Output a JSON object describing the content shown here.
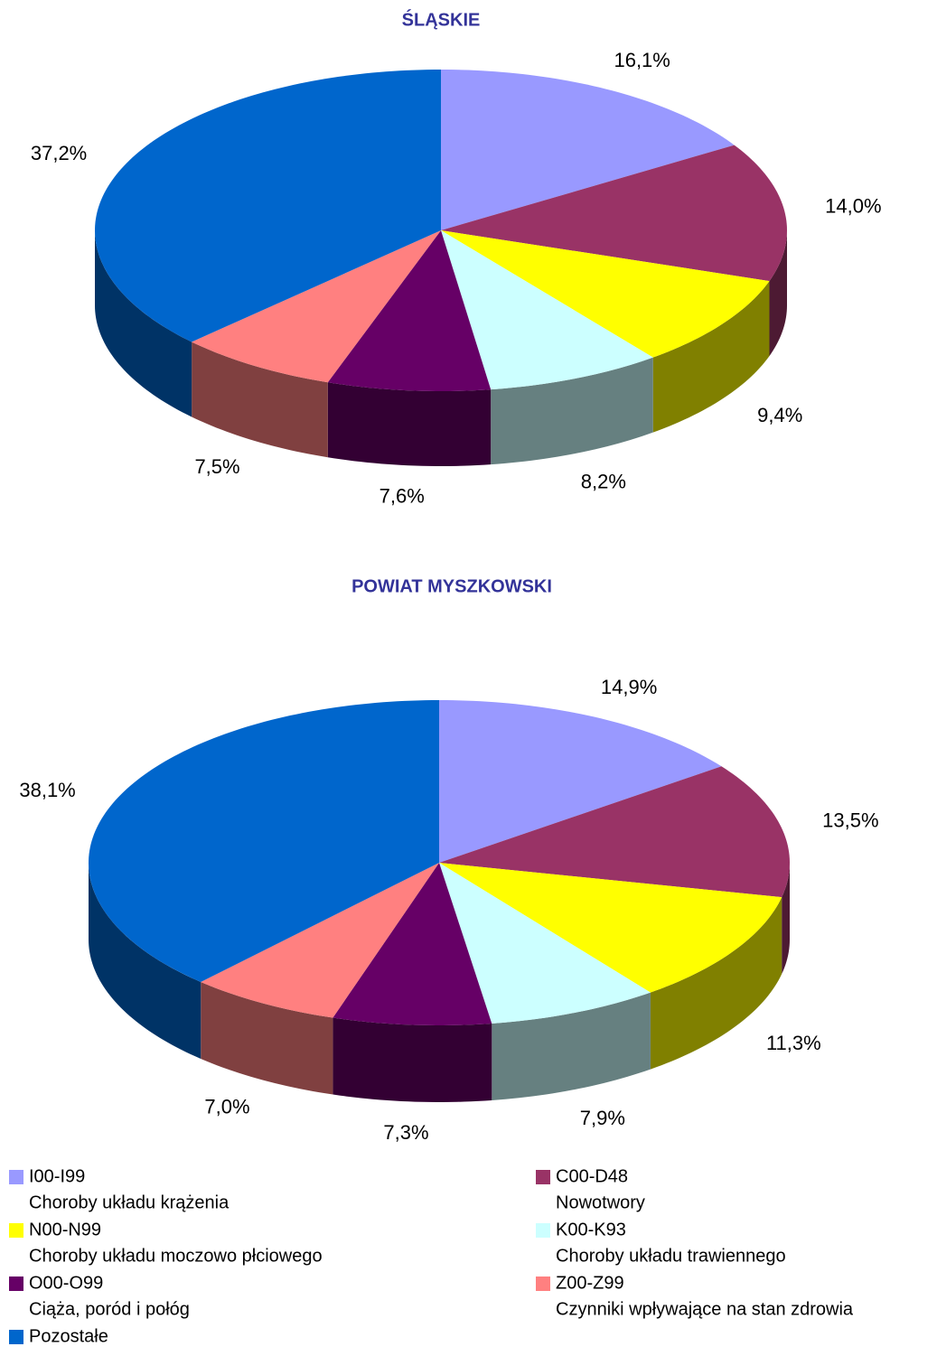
{
  "chart_data": [
    {
      "type": "pie",
      "title": "ŚLĄSKIE",
      "values": [
        16.1,
        14.0,
        9.4,
        8.2,
        7.6,
        7.5,
        37.2
      ],
      "value_labels": [
        "16,1%",
        "14,0%",
        "9,4%",
        "8,2%",
        "7,6%",
        "7,5%",
        "37,2%"
      ]
    },
    {
      "type": "pie",
      "title": "POWIAT MYSZKOWSKI",
      "values": [
        14.9,
        13.5,
        11.3,
        7.9,
        7.3,
        7.0,
        38.1
      ],
      "value_labels": [
        "14,9%",
        "13,5%",
        "11,3%",
        "7,9%",
        "7,3%",
        "7,0%",
        "38,1%"
      ]
    }
  ],
  "legend": {
    "items": [
      {
        "code": "I00-I99",
        "description": "Choroby układu krążenia",
        "color": "#9999ff"
      },
      {
        "code": "C00-D48",
        "description": "Nowotwory",
        "color": "#993366"
      },
      {
        "code": "N00-N99",
        "description": "Choroby układu moczowo płciowego",
        "color": "#ffff00"
      },
      {
        "code": "K00-K93",
        "description": "Choroby układu trawiennego",
        "color": "#ccffff"
      },
      {
        "code": "O00-O99",
        "description": "Ciąża, poród i połóg",
        "color": "#660066"
      },
      {
        "code": "Z00-Z99",
        "description": "Czynniki wpływające na stan zdrowia",
        "color": "#ff8080"
      },
      {
        "code": "Pozostałe",
        "color": "#0066cc"
      }
    ]
  }
}
